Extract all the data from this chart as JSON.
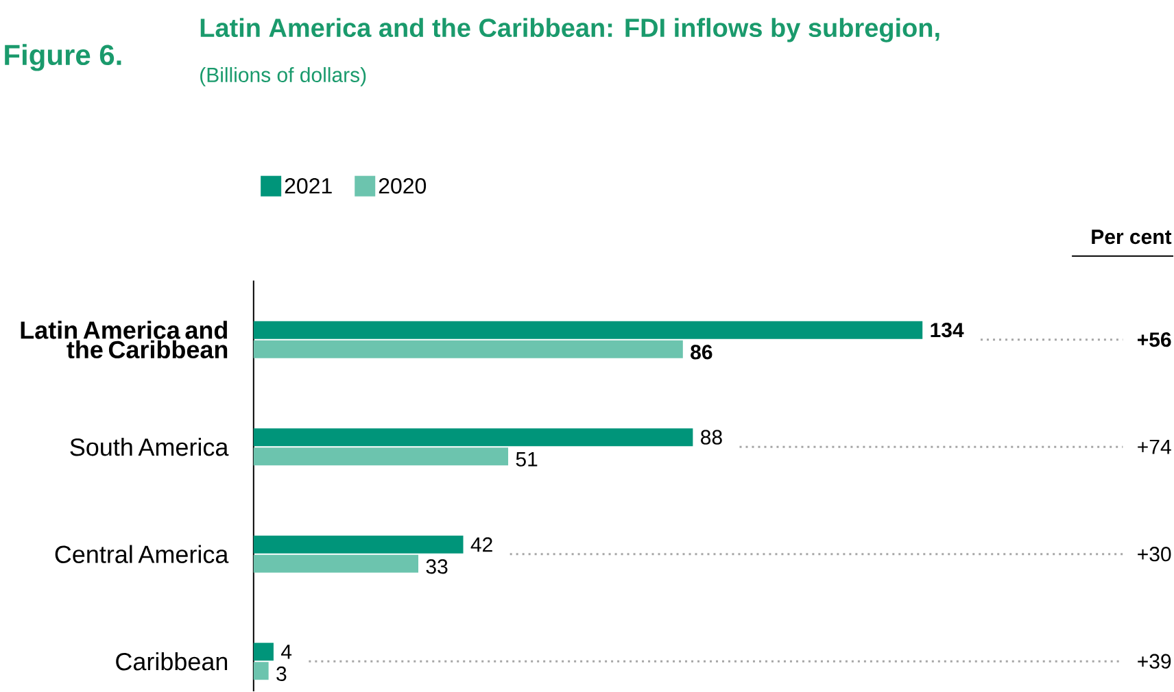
{
  "chart_data": {
    "type": "bar",
    "orientation": "horizontal",
    "title": "Latin America and the Caribbean: FDI inflows by subregion,",
    "subtitle": "(Billions of dollars)",
    "categories": [
      "Latin America and the Caribbean",
      "South America",
      "Central America",
      "Caribbean"
    ],
    "series": [
      {
        "name": "2021",
        "color": "#00957a",
        "values": [
          134,
          88,
          42,
          4
        ]
      },
      {
        "name": "2020",
        "color": "#6cc4ae",
        "values": [
          86,
          51,
          33,
          3
        ]
      }
    ],
    "data_labels": true,
    "legend": "top left",
    "annotations": [
      "Figure 6.",
      "Per cent",
      "+56",
      "+74",
      "+30",
      "+39"
    ]
  }
}
